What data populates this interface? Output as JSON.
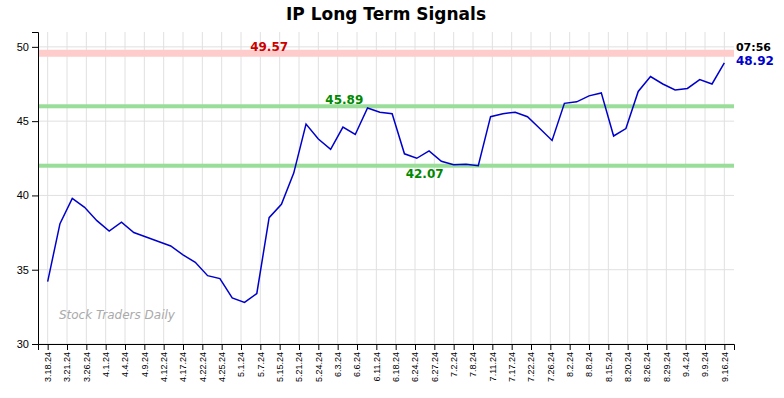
{
  "chart_data": {
    "type": "line",
    "title": "IP Long Term Signals",
    "color": "#0000cc",
    "grid": true,
    "x": [
      0,
      0.6363636363636364,
      1.2727272727272727,
      1.9090909090909092,
      2.5454545454545454,
      3.1818181818181817,
      3.8181818181818183,
      4.454545454545454,
      5.090909090909091,
      5.7272727272727275,
      6.363636363636363,
      7,
      7.636363636363637,
      8.272727272727273,
      8.909090909090908,
      9.545454545454545,
      10.181818181818182,
      10.818181818181818,
      11.454545454545455,
      12.090909090909092,
      12.727272727272727,
      13.363636363636363,
      14,
      14.636363636363637,
      15.272727272727273,
      15.909090909090908,
      16.545454545454547,
      17.181818181818183,
      17.818181818181817,
      18.454545454545453,
      19.09090909090909,
      19.727272727272727,
      20.363636363636363,
      21,
      21.636363636363637,
      22.272727272727273,
      22.90909090909091,
      23.545454545454547,
      24.181818181818183,
      24.818181818181817,
      25.454545454545453,
      26.09090909090909,
      26.727272727272727,
      27.363636363636363,
      28,
      28.636363636363637,
      29.272727272727273,
      29.90909090909091,
      30.545454545454547,
      31.181818181818183,
      31.818181818181817,
      32.45454545454545,
      33.09090909090909,
      33.72727272727273,
      34.36363636363637,
      35
    ],
    "values": [
      34.2,
      38.1,
      39.8,
      39.2,
      38.3,
      37.6,
      38.2,
      37.5,
      37.2,
      36.9,
      36.6,
      36.0,
      35.5,
      34.6,
      34.4,
      33.1,
      32.8,
      33.4,
      38.5,
      39.4,
      41.5,
      44.8,
      43.8,
      43.1,
      44.6,
      44.1,
      45.89,
      45.6,
      45.5,
      42.8,
      42.5,
      43.0,
      42.3,
      42.07,
      42.1,
      42.0,
      45.3,
      45.5,
      45.6,
      45.3,
      44.5,
      43.7,
      46.2,
      46.3,
      46.7,
      46.9,
      44.0,
      44.5,
      47.0,
      48.0,
      47.5,
      47.1,
      47.2,
      47.8,
      47.5,
      48.92
    ],
    "xlim": [
      -0.5,
      35.5
    ],
    "xticks": [
      {
        "value": 0,
        "label": "3.18.24"
      },
      {
        "value": 1,
        "label": "3.21.24"
      },
      {
        "value": 2,
        "label": "3.26.24"
      },
      {
        "value": 3,
        "label": "4.1.24"
      },
      {
        "value": 4,
        "label": "4.4.24"
      },
      {
        "value": 5,
        "label": "4.9.24"
      },
      {
        "value": 6,
        "label": "4.12.24"
      },
      {
        "value": 7,
        "label": "4.17.24"
      },
      {
        "value": 8,
        "label": "4.22.24"
      },
      {
        "value": 9,
        "label": "4.25.24"
      },
      {
        "value": 10,
        "label": "5.1.24"
      },
      {
        "value": 11,
        "label": "5.7.24"
      },
      {
        "value": 12,
        "label": "5.15.24"
      },
      {
        "value": 13,
        "label": "5.21.24"
      },
      {
        "value": 14,
        "label": "5.24.24"
      },
      {
        "value": 15,
        "label": "6.3.24"
      },
      {
        "value": 16,
        "label": "6.6.24"
      },
      {
        "value": 17,
        "label": "6.11.24"
      },
      {
        "value": 18,
        "label": "6.18.24"
      },
      {
        "value": 19,
        "label": "6.24.24"
      },
      {
        "value": 20,
        "label": "6.27.24"
      },
      {
        "value": 21,
        "label": "7.2.24"
      },
      {
        "value": 22,
        "label": "7.8.24"
      },
      {
        "value": 23,
        "label": "7.11.24"
      },
      {
        "value": 24,
        "label": "7.17.24"
      },
      {
        "value": 25,
        "label": "7.22.24"
      },
      {
        "value": 26,
        "label": "7.26.24"
      },
      {
        "value": 27,
        "label": "8.2.24"
      },
      {
        "value": 28,
        "label": "8.8.24"
      },
      {
        "value": 29,
        "label": "8.15.24"
      },
      {
        "value": 30,
        "label": "8.20.24"
      },
      {
        "value": 31,
        "label": "8.26.24"
      },
      {
        "value": 32,
        "label": "8.29.24"
      },
      {
        "value": 33,
        "label": "9.4.24"
      },
      {
        "value": 34,
        "label": "9.9.24"
      },
      {
        "value": 35,
        "label": "9.16.24"
      }
    ],
    "ylim": [
      30,
      51
    ],
    "yticks": [
      30,
      35,
      40,
      45,
      50
    ],
    "bands": [
      {
        "value": 49.57,
        "color": "#ffcccc"
      },
      {
        "value": 46.0,
        "color": "#99dd99"
      },
      {
        "value": 42.0,
        "color": "#99dd99"
      }
    ],
    "annotations": [
      {
        "text": "49.57",
        "x": 11.454545454545455,
        "y": 49.57,
        "color": "#cc0000"
      },
      {
        "text": "45.89",
        "x": 16.545454545454547,
        "y": 45.89,
        "color": "#008800"
      },
      {
        "text": "42.07",
        "x": 21,
        "y": 42.07,
        "color": "#008800"
      },
      {
        "text": "07:56",
        "x": 35,
        "y": 48.92,
        "color": "#000000"
      },
      {
        "text": "48.92",
        "x": 35,
        "y": 48.92,
        "color": "#0000cc"
      }
    ],
    "watermark": {
      "text": "Stock Traders Daily",
      "color": "#aaaaaa"
    }
  }
}
